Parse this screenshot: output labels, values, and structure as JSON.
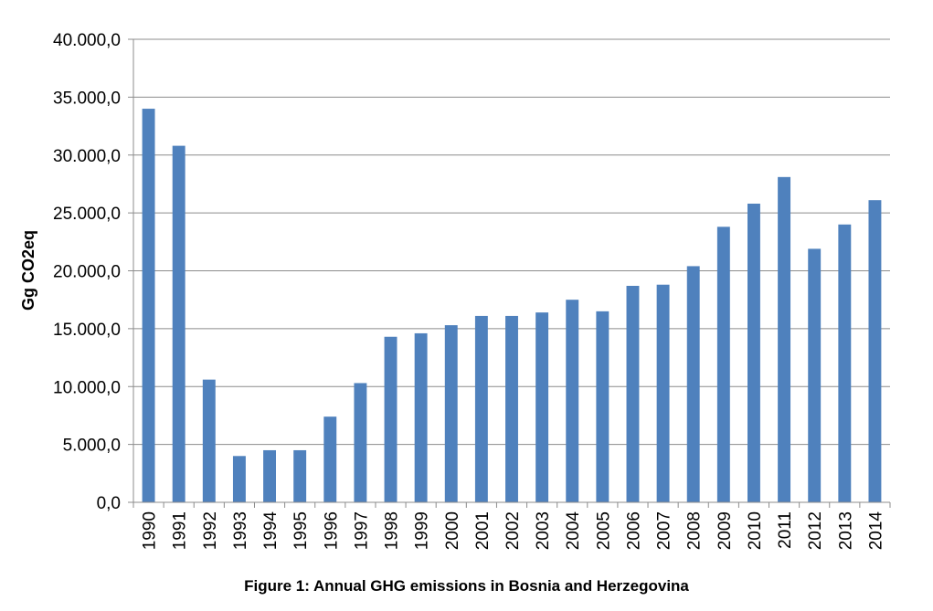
{
  "caption": "Figure 1: Annual GHG emissions in Bosnia and Herzegovina",
  "chart_data": {
    "type": "bar",
    "title": "",
    "xlabel": "",
    "ylabel": "Gg CO2eq",
    "ylim": [
      0,
      40000
    ],
    "ytick_labels": [
      "0,0",
      "5.000,0",
      "10.000,0",
      "15.000,0",
      "20.000,0",
      "25.000,0",
      "30.000,0",
      "35.000,0",
      "40.000,0"
    ],
    "grid": true,
    "legend": "none",
    "bar_color": "#4f81bd",
    "categories": [
      "1990",
      "1991",
      "1992",
      "1993",
      "1994",
      "1995",
      "1996",
      "1997",
      "1998",
      "1999",
      "2000",
      "2001",
      "2002",
      "2003",
      "2004",
      "2005",
      "2006",
      "2007",
      "2008",
      "2009",
      "2010",
      "2011",
      "2012",
      "2013",
      "2014"
    ],
    "values": [
      34000,
      30800,
      10600,
      4000,
      4500,
      4500,
      7400,
      10300,
      14300,
      14600,
      15300,
      16100,
      16100,
      16400,
      17500,
      16500,
      18700,
      18800,
      20400,
      23800,
      25800,
      28100,
      21900,
      24000,
      26100
    ]
  }
}
